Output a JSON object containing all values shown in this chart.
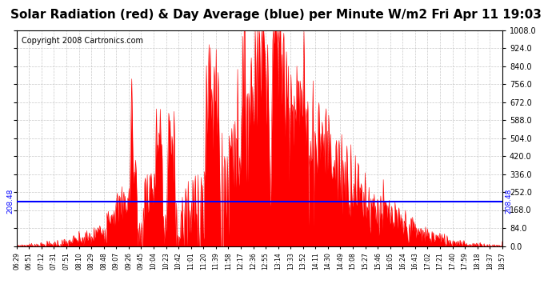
{
  "title": "Solar Radiation (red) & Day Average (blue) per Minute W/m2 Fri Apr 11 19:03",
  "copyright": "Copyright 2008 Cartronics.com",
  "y_max": 1008.0,
  "y_min": 0.0,
  "y_ticks": [
    0.0,
    84.0,
    168.0,
    252.0,
    336.0,
    420.0,
    504.0,
    588.0,
    672.0,
    756.0,
    840.0,
    924.0,
    1008.0
  ],
  "day_average": 208.48,
  "bar_color": "#FF0000",
  "avg_line_color": "#0000FF",
  "background_color": "#FFFFFF",
  "grid_color": "#BBBBBB",
  "title_fontsize": 11,
  "copyright_fontsize": 7,
  "avg_label": "208.48",
  "x_labels": [
    "06:29",
    "06:51",
    "07:12",
    "07:31",
    "07:51",
    "08:10",
    "08:29",
    "08:48",
    "09:07",
    "09:26",
    "09:45",
    "10:04",
    "10:23",
    "10:42",
    "11:01",
    "11:20",
    "11:39",
    "11:58",
    "12:17",
    "12:36",
    "12:55",
    "13:14",
    "13:33",
    "13:52",
    "14:11",
    "14:30",
    "14:49",
    "15:08",
    "15:27",
    "15:46",
    "16:05",
    "16:24",
    "16:43",
    "17:02",
    "17:21",
    "17:40",
    "17:59",
    "18:18",
    "18:37",
    "18:57"
  ]
}
